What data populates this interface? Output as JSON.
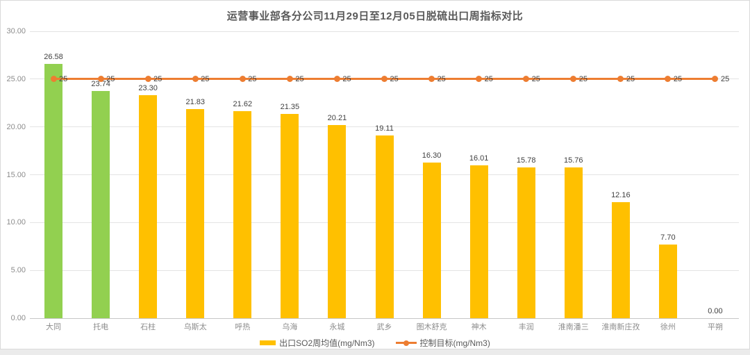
{
  "chart_data": {
    "type": "bar",
    "title": "运营事业部各分公司11月29日至12月05日脱硫出口周指标对比",
    "categories": [
      "大同",
      "托电",
      "石柱",
      "乌斯太",
      "呼热",
      "乌海",
      "永城",
      "武乡",
      "图木舒克",
      "神木",
      "丰润",
      "淮南潘三",
      "淮南新庄孜",
      "徐州",
      "平朔"
    ],
    "series": [
      {
        "name": "出口SO2周均值(mg/Nm3)",
        "type": "bar",
        "values": [
          26.58,
          23.74,
          23.3,
          21.83,
          21.62,
          21.35,
          20.21,
          19.11,
          16.3,
          16.01,
          15.78,
          15.76,
          12.16,
          7.7,
          0
        ],
        "default_color": "#FFC000",
        "point_colors": [
          "#92D050",
          "#92D050",
          "#FFC000",
          "#FFC000",
          "#FFC000",
          "#FFC000",
          "#FFC000",
          "#FFC000",
          "#FFC000",
          "#FFC000",
          "#FFC000",
          "#FFC000",
          "#FFC000",
          "#FFC000",
          "#FFC000"
        ]
      },
      {
        "name": "控制目标(mg/Nm3)",
        "type": "line",
        "values": [
          25,
          25,
          25,
          25,
          25,
          25,
          25,
          25,
          25,
          25,
          25,
          25,
          25,
          25,
          25
        ],
        "color": "#ED7D31"
      }
    ],
    "ylim": [
      0,
      30
    ],
    "ytick_step": 5,
    "ytick_labels": [
      "0.00",
      "5.00",
      "10.00",
      "15.00",
      "20.00",
      "25.00",
      "30.00"
    ],
    "grid": true,
    "data_labels": true,
    "legend_position": "bottom"
  },
  "colors": {
    "bar_default": "#FFC000",
    "bar_highlight": "#92D050",
    "target_line": "#ED7D31",
    "grid": "#E3E3E3",
    "axis": "#C6C6C6",
    "title_text": "#595959",
    "tick_text": "#8C8C8C",
    "data_label_text": "#404040",
    "frame_border": "#D9D9D9",
    "page_background": "#EBEBEB"
  }
}
